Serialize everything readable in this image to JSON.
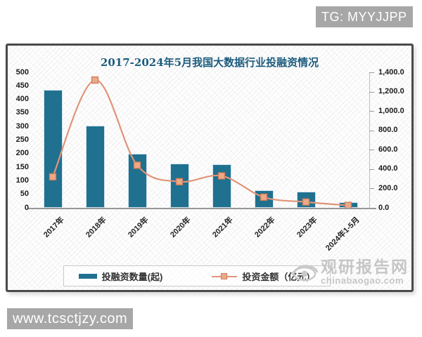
{
  "badges": {
    "tg": "TG: MYYJJPP",
    "site": "www.tcsctjzy.com"
  },
  "watermark": {
    "brand": "观研报告网",
    "domain": "chinabaogao.com"
  },
  "chart_data": {
    "type": "bar+line",
    "title": "2017-2024年5月我国大数据行业投融资情况",
    "categories": [
      "2017年",
      "2018年",
      "2019年",
      "2020年",
      "2021年",
      "2022年",
      "2023年",
      "2024年1-5月"
    ],
    "series": [
      {
        "name": "投融资数量(起)",
        "type": "bar",
        "axis": "left",
        "color": "#20708f",
        "values": [
          434,
          304,
          200,
          164,
          160,
          65,
          60,
          20
        ]
      },
      {
        "name": "投资金额（亿元）",
        "type": "line",
        "axis": "right",
        "color": "#e09478",
        "marker_fill": "#eca98a",
        "marker_stroke": "#cf7e57",
        "values": [
          320,
          1320,
          440,
          270,
          330,
          110,
          60,
          25
        ]
      }
    ],
    "left_axis": {
      "min": 0,
      "max": 500,
      "tick_labels": [
        "0",
        "50",
        "100",
        "150",
        "200",
        "250",
        "300",
        "350",
        "400",
        "450",
        "500"
      ]
    },
    "right_axis": {
      "min": 0,
      "max": 1400,
      "tick_labels": [
        "0.0",
        "200.0",
        "400.0",
        "600.0",
        "800.0",
        "1,000.0",
        "1,200.0",
        "1,400.0"
      ]
    },
    "grid": "off",
    "legend_position": "bottom"
  }
}
